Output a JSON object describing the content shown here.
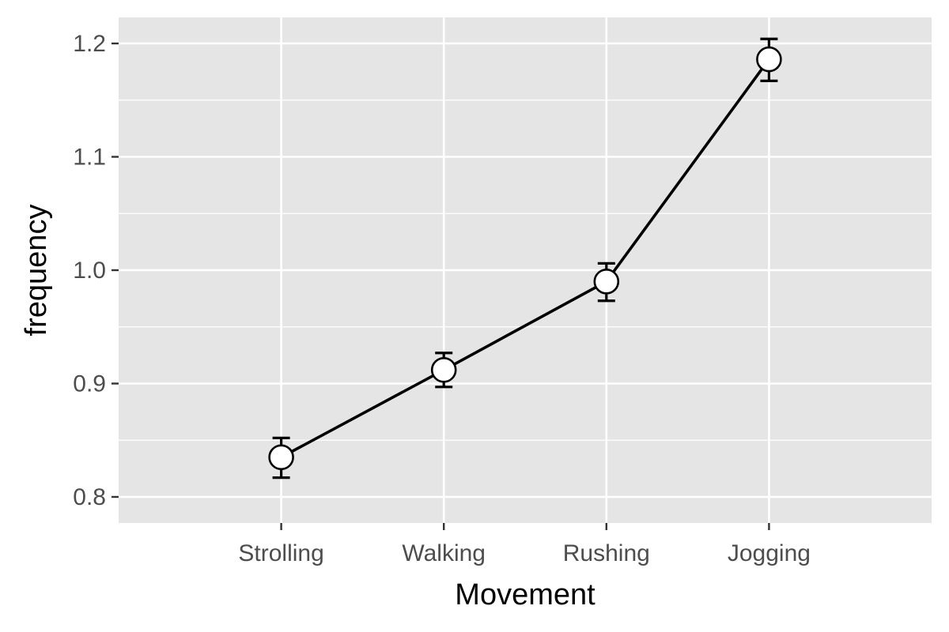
{
  "chart_data": {
    "type": "line",
    "title": "",
    "xlabel": "Movement",
    "ylabel": "frequency",
    "categories": [
      "Strolling",
      "Walking",
      "Rushing",
      "Jogging"
    ],
    "series": [
      {
        "values": [
          0.835,
          0.912,
          0.99,
          1.186
        ],
        "error_low": [
          0.817,
          0.897,
          0.973,
          1.167
        ],
        "error_high": [
          0.852,
          0.927,
          1.006,
          1.204
        ]
      }
    ],
    "ylim": [
      0.777,
      1.223
    ],
    "yticks": [
      0.8,
      0.9,
      1.0,
      1.1,
      1.2
    ],
    "ytick_labels": [
      "0.8",
      "0.9",
      "1.0",
      "1.1",
      "1.2"
    ],
    "grid": true,
    "legend": "none",
    "colors": {
      "panel_background": "#e5e5e5",
      "grid": "#ffffff",
      "line": "#000000",
      "point_fill": "#ffffff",
      "tick_label": "#4d4d4d",
      "axis_tick": "#333333"
    }
  }
}
